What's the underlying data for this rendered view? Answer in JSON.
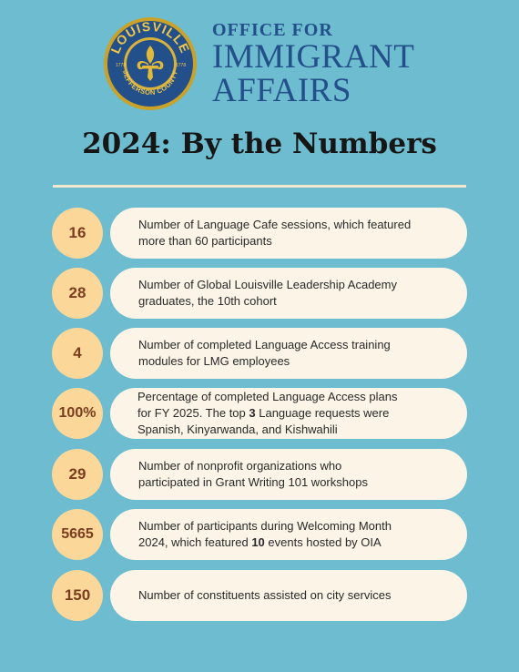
{
  "header": {
    "seal": {
      "ring_text": "LOUISVILLE",
      "bottom_text": "JEFFERSON COUNTY",
      "left_year": "1778",
      "right_year": "1778"
    },
    "org_line1": "OFFICE FOR",
    "org_line2": "IMMIGRANT",
    "org_line3": "AFFAIRS"
  },
  "title": "2024: By the Numbers",
  "stats": [
    {
      "value": "16",
      "line1": "Number of Language Cafe sessions, which featured",
      "line2": "more than 60 participants"
    },
    {
      "value": "28",
      "line1": "Number of Global Louisville Leadership Academy",
      "line2": "graduates, the 10th cohort"
    },
    {
      "value": "4",
      "line1": "Number of completed Language Access training",
      "line2": "modules for LMG employees"
    },
    {
      "value": "100%",
      "line1": "Percentage of completed Language Access plans",
      "line2a": "for FY 2025. The top ",
      "line2b": "3",
      "line2c": " Language requests were",
      "line3": "Spanish, Kinyarwanda, and Kishwahili"
    },
    {
      "value": "29",
      "line1": "Number of nonprofit organizations who",
      "line2": "participated in Grant Writing 101 workshops"
    },
    {
      "value": "5665",
      "line1": "Number of participants during Welcoming Month",
      "line2a": "2024, which featured ",
      "line2b": "10",
      "line2c": " events hosted by OIA"
    },
    {
      "value": "150",
      "line1": "Number of constituents assisted on city services"
    }
  ],
  "colors": {
    "background": "#6dbccf",
    "brand_blue": "#234f8a",
    "circle_fill": "#fbd899",
    "pill_fill": "#fbf4e7"
  }
}
